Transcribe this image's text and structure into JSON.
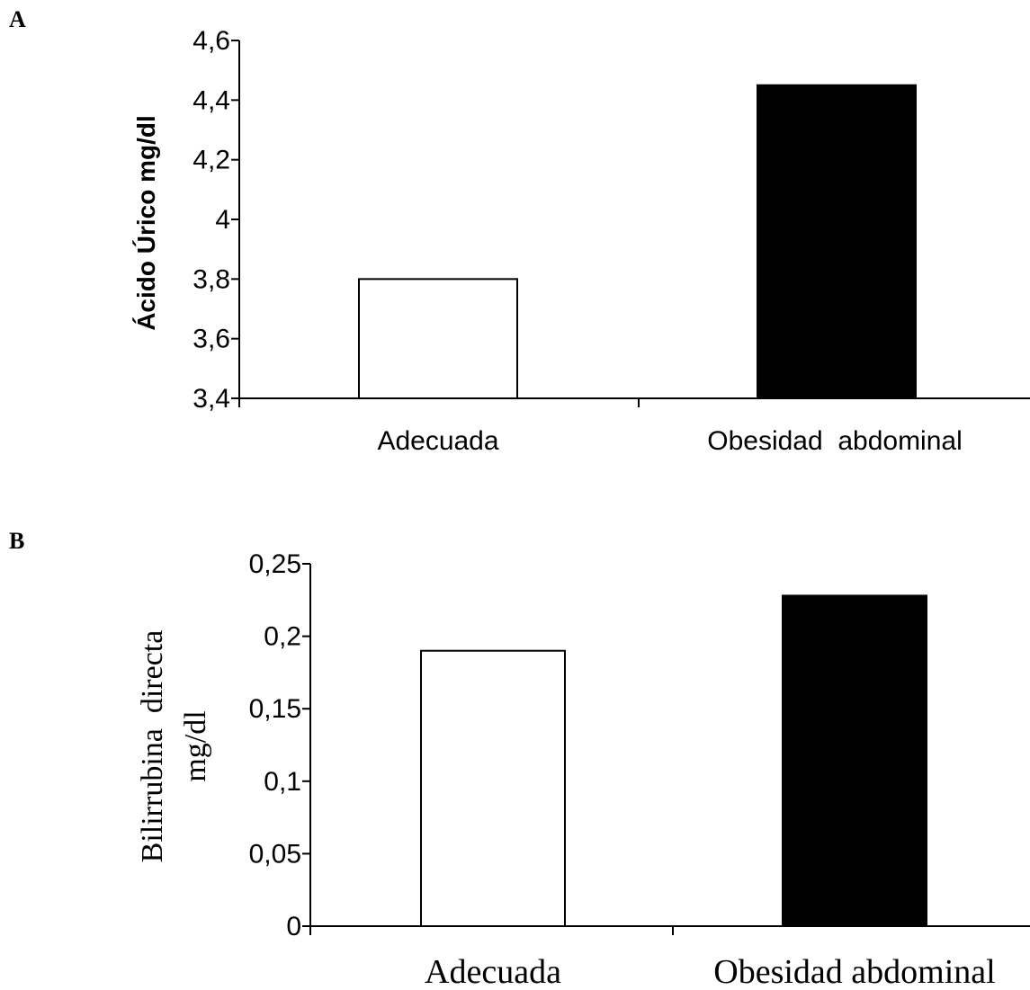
{
  "chart_data": [
    {
      "type": "bar",
      "panel_label": "A",
      "title": "",
      "xlabel": "",
      "ylabel": "Ácido Úrico mg/dl",
      "categories": [
        "Adecuada",
        "Obesidad  abdominal"
      ],
      "values": [
        3.8,
        4.45
      ],
      "bar_colors": [
        "#ffffff",
        "#000000"
      ],
      "ylim": [
        3.4,
        4.6
      ],
      "yticks": [
        "3,4",
        "3,6",
        "3,8",
        "4",
        "4,2",
        "4,4",
        "4,6"
      ],
      "ytick_values": [
        3.4,
        3.6,
        3.8,
        4.0,
        4.2,
        4.4,
        4.6
      ],
      "grid": false,
      "legend": "none"
    },
    {
      "type": "bar",
      "panel_label": "B",
      "title": "",
      "xlabel": "",
      "ylabel_lines": [
        "Bilirrubina  directa",
        "mg/dl"
      ],
      "categories": [
        "Adecuada",
        "Obesidad abdominal"
      ],
      "values": [
        0.19,
        0.228
      ],
      "bar_colors": [
        "#ffffff",
        "#000000"
      ],
      "ylim": [
        0,
        0.25
      ],
      "yticks": [
        "0",
        "0,05",
        "0,1",
        "0,15",
        "0,2",
        "0,25"
      ],
      "ytick_values": [
        0,
        0.05,
        0.1,
        0.15,
        0.2,
        0.25
      ],
      "grid": false,
      "legend": "none"
    }
  ]
}
